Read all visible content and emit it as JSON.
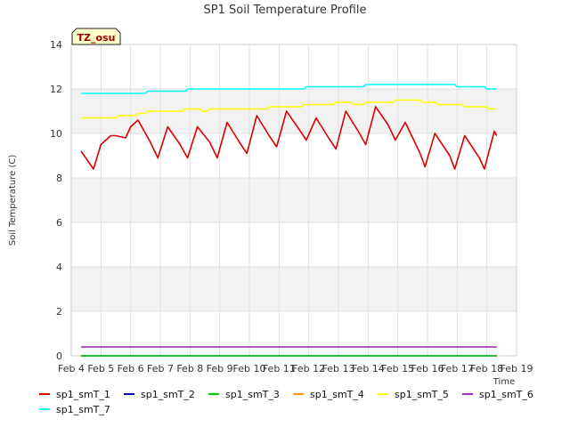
{
  "chart_data": {
    "type": "line",
    "title": "SP1 Soil Temperature Profile",
    "xlabel": "Time",
    "ylabel": "Soil Temperature (C)",
    "xlim": [
      "2024-02-04",
      "2024-02-19"
    ],
    "ylim": [
      0,
      14
    ],
    "x_tick_labels": [
      "Feb 4",
      "Feb 5",
      "Feb 6",
      "Feb 7",
      "Feb 8",
      "Feb 9",
      "Feb 10",
      "Feb 11",
      "Feb 12",
      "Feb 13",
      "Feb 14",
      "Feb 15",
      "Feb 16",
      "Feb 17",
      "Feb 18",
      "Feb 19"
    ],
    "y_ticks": [
      0,
      2,
      4,
      6,
      8,
      10,
      12,
      14
    ],
    "grid": true,
    "legend_position": "bottom",
    "annotation": "TZ_osu",
    "series": [
      {
        "name": "sp1_smT_1",
        "color": "#dd0000",
        "x": [
          "2024-02-04 08:00",
          "2024-02-04 18:00",
          "2024-02-05 00:00",
          "2024-02-05 08:00",
          "2024-02-05 12:00",
          "2024-02-05 20:00",
          "2024-02-06 00:00",
          "2024-02-06 06:00",
          "2024-02-06 16:00",
          "2024-02-06 22:00",
          "2024-02-07 06:00",
          "2024-02-07 16:00",
          "2024-02-07 22:00",
          "2024-02-08 06:00",
          "2024-02-08 16:00",
          "2024-02-08 22:00",
          "2024-02-09 06:00",
          "2024-02-09 16:00",
          "2024-02-09 22:00",
          "2024-02-10 06:00",
          "2024-02-10 16:00",
          "2024-02-10 22:00",
          "2024-02-11 06:00",
          "2024-02-11 16:00",
          "2024-02-11 22:00",
          "2024-02-12 06:00",
          "2024-02-12 16:00",
          "2024-02-12 22:00",
          "2024-02-13 06:00",
          "2024-02-13 16:00",
          "2024-02-13 22:00",
          "2024-02-14 06:00",
          "2024-02-14 16:00",
          "2024-02-14 22:00",
          "2024-02-15 06:00",
          "2024-02-15 18:00",
          "2024-02-15 22:00",
          "2024-02-16 06:00",
          "2024-02-16 18:00",
          "2024-02-16 22:00",
          "2024-02-17 06:00",
          "2024-02-17 18:00",
          "2024-02-17 22:00",
          "2024-02-18 06:00",
          "2024-02-18 08:00"
        ],
        "y": [
          9.2,
          8.4,
          9.5,
          9.9,
          9.9,
          9.8,
          10.3,
          10.6,
          9.6,
          8.9,
          10.3,
          9.5,
          8.9,
          10.3,
          9.6,
          8.9,
          10.5,
          9.6,
          9.1,
          10.8,
          9.9,
          9.4,
          11.0,
          10.2,
          9.7,
          10.7,
          9.8,
          9.3,
          11.0,
          10.1,
          9.5,
          11.2,
          10.4,
          9.7,
          10.5,
          9.1,
          8.5,
          10.0,
          9.0,
          8.4,
          9.9,
          8.9,
          8.4,
          10.1,
          9.9
        ]
      },
      {
        "name": "sp1_smT_2",
        "color": "#0000bb",
        "x": [
          "2024-02-04 08:00",
          "2024-02-18 08:00"
        ],
        "y": [
          0.0,
          0.0
        ]
      },
      {
        "name": "sp1_smT_3",
        "color": "#00cc00",
        "x": [
          "2024-02-04 08:00",
          "2024-02-18 08:00"
        ],
        "y": [
          0.0,
          0.0
        ]
      },
      {
        "name": "sp1_smT_4",
        "color": "#ff9900",
        "x": [
          "2024-02-04 08:00",
          "2024-02-18 08:00"
        ],
        "y": [
          0.4,
          0.4
        ]
      },
      {
        "name": "sp1_smT_5",
        "color": "#ffff00",
        "x": [
          "2024-02-04 08:00",
          "2024-02-05 12:00",
          "2024-02-05 14:00",
          "2024-02-06 04:00",
          "2024-02-06 06:00",
          "2024-02-06 12:00",
          "2024-02-06 14:00",
          "2024-02-07 18:00",
          "2024-02-07 20:00",
          "2024-02-08 08:00",
          "2024-02-08 10:00",
          "2024-02-08 14:00",
          "2024-02-08 16:00",
          "2024-02-10 14:00",
          "2024-02-10 16:00",
          "2024-02-11 18:00",
          "2024-02-11 20:00",
          "2024-02-12 20:00",
          "2024-02-12 22:00",
          "2024-02-13 10:00",
          "2024-02-13 12:00",
          "2024-02-13 20:00",
          "2024-02-13 22:00",
          "2024-02-14 20:00",
          "2024-02-14 22:00",
          "2024-02-15 18:00",
          "2024-02-15 20:00",
          "2024-02-16 06:00",
          "2024-02-16 08:00",
          "2024-02-17 04:00",
          "2024-02-17 06:00",
          "2024-02-18 00:00",
          "2024-02-18 02:00",
          "2024-02-18 08:00"
        ],
        "y": [
          10.7,
          10.7,
          10.8,
          10.8,
          10.9,
          10.9,
          11.0,
          11.0,
          11.1,
          11.1,
          11.0,
          11.0,
          11.1,
          11.1,
          11.2,
          11.2,
          11.3,
          11.3,
          11.4,
          11.4,
          11.3,
          11.3,
          11.4,
          11.4,
          11.5,
          11.5,
          11.4,
          11.4,
          11.3,
          11.3,
          11.2,
          11.2,
          11.1,
          11.1
        ]
      },
      {
        "name": "sp1_smT_6",
        "color": "#9933cc",
        "x": [
          "2024-02-04 08:00",
          "2024-02-18 08:00"
        ],
        "y": [
          0.4,
          0.4
        ]
      },
      {
        "name": "sp1_smT_7",
        "color": "#00ffff",
        "x": [
          "2024-02-04 08:00",
          "2024-02-06 12:00",
          "2024-02-06 14:00",
          "2024-02-07 20:00",
          "2024-02-07 22:00",
          "2024-02-11 20:00",
          "2024-02-11 22:00",
          "2024-02-13 20:00",
          "2024-02-13 22:00",
          "2024-02-16 22:00",
          "2024-02-17 00:00",
          "2024-02-17 22:00",
          "2024-02-18 00:00",
          "2024-02-18 08:00"
        ],
        "y": [
          11.8,
          11.8,
          11.9,
          11.9,
          12.0,
          12.0,
          12.1,
          12.1,
          12.2,
          12.2,
          12.1,
          12.1,
          12.0,
          12.0
        ]
      }
    ]
  }
}
